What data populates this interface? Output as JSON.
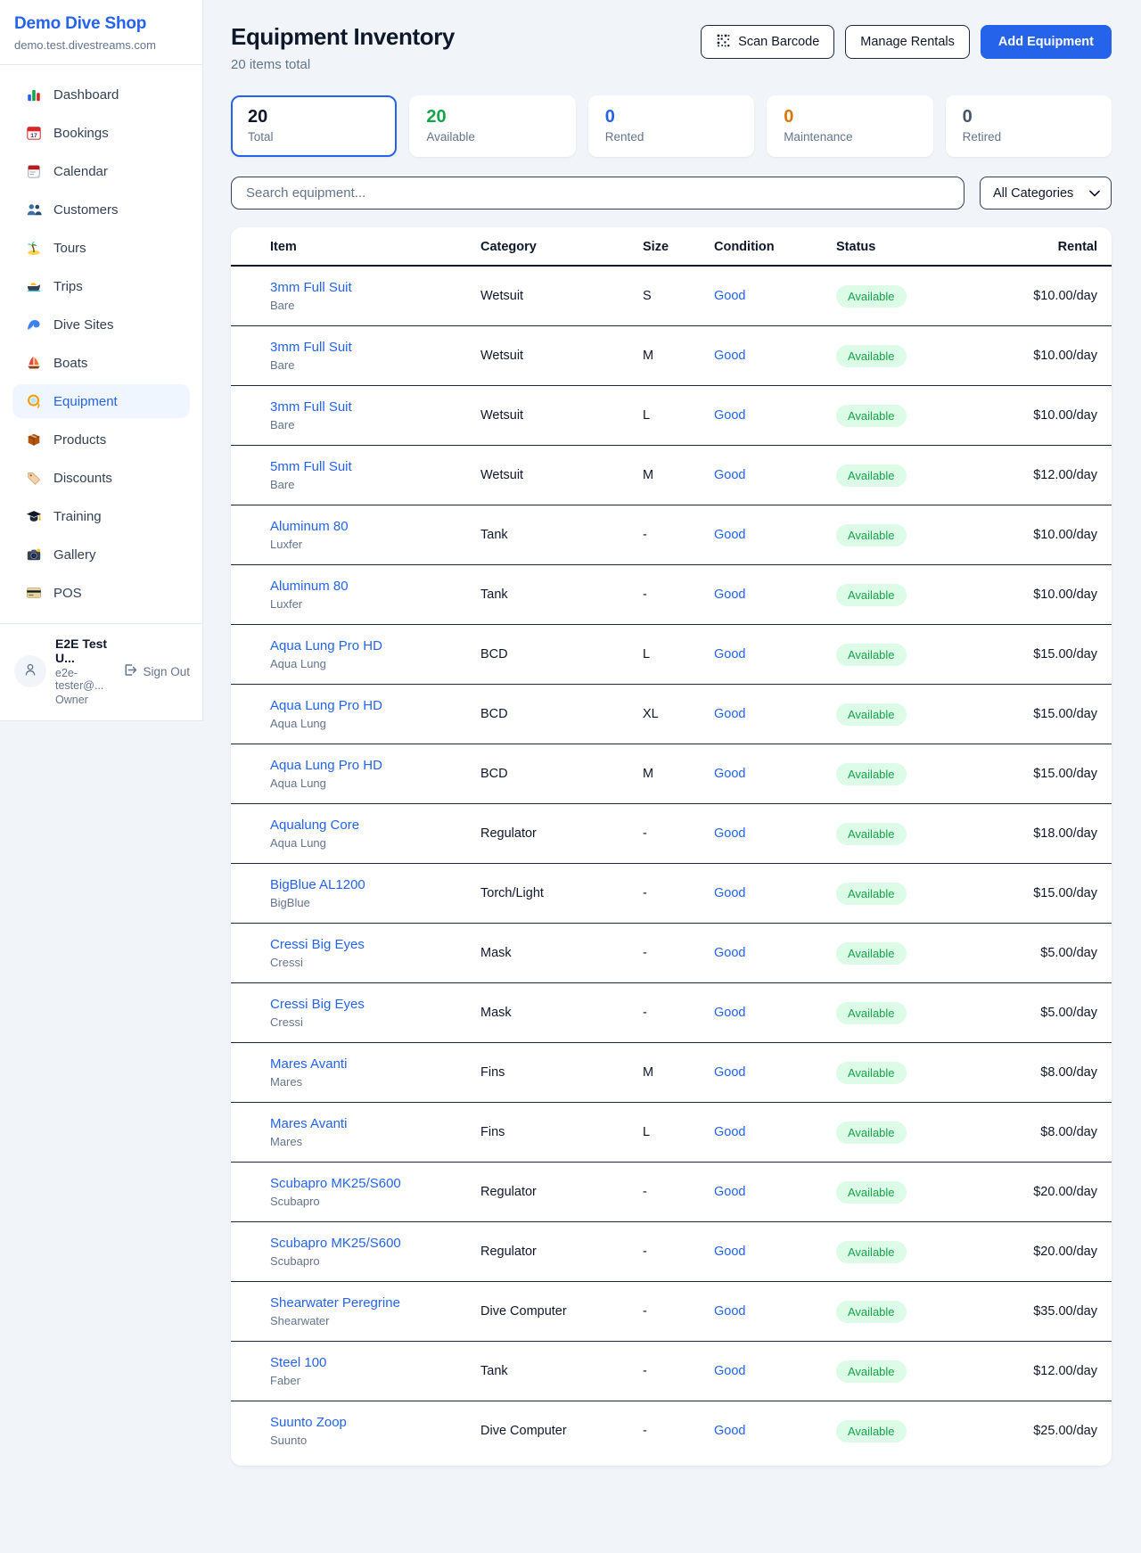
{
  "colors": {
    "accent": "#2563eb",
    "link": "#2563eb",
    "pill_bg": "#dcfce7",
    "pill_text": "#16a34a"
  },
  "sidebar": {
    "brand": "Demo Dive Shop",
    "domain": "demo.test.divestreams.com",
    "items": [
      {
        "label": "Dashboard",
        "icon": "bar-chart"
      },
      {
        "label": "Bookings",
        "icon": "calendar-date"
      },
      {
        "label": "Calendar",
        "icon": "calendar-pad"
      },
      {
        "label": "Customers",
        "icon": "people"
      },
      {
        "label": "Tours",
        "icon": "palm-island"
      },
      {
        "label": "Trips",
        "icon": "motorboat"
      },
      {
        "label": "Dive Sites",
        "icon": "wave"
      },
      {
        "label": "Boats",
        "icon": "sailboat"
      },
      {
        "label": "Equipment",
        "icon": "dive-mask",
        "active": true
      },
      {
        "label": "Products",
        "icon": "package"
      },
      {
        "label": "Discounts",
        "icon": "tag"
      },
      {
        "label": "Training",
        "icon": "grad-cap"
      },
      {
        "label": "Gallery",
        "icon": "camera"
      },
      {
        "label": "POS",
        "icon": "credit-card"
      }
    ],
    "user": {
      "name": "E2E Test U...",
      "email": "e2e-tester@...",
      "role": "Owner",
      "signout_label": "Sign Out"
    }
  },
  "header": {
    "title": "Equipment Inventory",
    "subtitle": "20 items total",
    "scan_label": "Scan Barcode",
    "manage_label": "Manage Rentals",
    "add_label": "Add Equipment"
  },
  "stats": [
    {
      "value": "20",
      "label": "Total",
      "color": "#0f172a",
      "selected": true
    },
    {
      "value": "20",
      "label": "Available",
      "color": "#16a34a",
      "selected": false
    },
    {
      "value": "0",
      "label": "Rented",
      "color": "#2563eb",
      "selected": false
    },
    {
      "value": "0",
      "label": "Maintenance",
      "color": "#d97706",
      "selected": false
    },
    {
      "value": "0",
      "label": "Retired",
      "color": "#475569",
      "selected": false
    }
  ],
  "filters": {
    "search_placeholder": "Search equipment...",
    "category": "All Categories"
  },
  "table": {
    "columns": [
      "Item",
      "Category",
      "Size",
      "Condition",
      "Status",
      "Rental"
    ],
    "rows": [
      {
        "name": "3mm Full Suit",
        "brand": "Bare",
        "category": "Wetsuit",
        "size": "S",
        "condition": "Good",
        "status": "Available",
        "rental": "$10.00/day"
      },
      {
        "name": "3mm Full Suit",
        "brand": "Bare",
        "category": "Wetsuit",
        "size": "M",
        "condition": "Good",
        "status": "Available",
        "rental": "$10.00/day"
      },
      {
        "name": "3mm Full Suit",
        "brand": "Bare",
        "category": "Wetsuit",
        "size": "L",
        "condition": "Good",
        "status": "Available",
        "rental": "$10.00/day"
      },
      {
        "name": "5mm Full Suit",
        "brand": "Bare",
        "category": "Wetsuit",
        "size": "M",
        "condition": "Good",
        "status": "Available",
        "rental": "$12.00/day"
      },
      {
        "name": "Aluminum 80",
        "brand": "Luxfer",
        "category": "Tank",
        "size": "-",
        "condition": "Good",
        "status": "Available",
        "rental": "$10.00/day"
      },
      {
        "name": "Aluminum 80",
        "brand": "Luxfer",
        "category": "Tank",
        "size": "-",
        "condition": "Good",
        "status": "Available",
        "rental": "$10.00/day"
      },
      {
        "name": "Aqua Lung Pro HD",
        "brand": "Aqua Lung",
        "category": "BCD",
        "size": "L",
        "condition": "Good",
        "status": "Available",
        "rental": "$15.00/day"
      },
      {
        "name": "Aqua Lung Pro HD",
        "brand": "Aqua Lung",
        "category": "BCD",
        "size": "XL",
        "condition": "Good",
        "status": "Available",
        "rental": "$15.00/day"
      },
      {
        "name": "Aqua Lung Pro HD",
        "brand": "Aqua Lung",
        "category": "BCD",
        "size": "M",
        "condition": "Good",
        "status": "Available",
        "rental": "$15.00/day"
      },
      {
        "name": "Aqualung Core",
        "brand": "Aqua Lung",
        "category": "Regulator",
        "size": "-",
        "condition": "Good",
        "status": "Available",
        "rental": "$18.00/day"
      },
      {
        "name": "BigBlue AL1200",
        "brand": "BigBlue",
        "category": "Torch/Light",
        "size": "-",
        "condition": "Good",
        "status": "Available",
        "rental": "$15.00/day"
      },
      {
        "name": "Cressi Big Eyes",
        "brand": "Cressi",
        "category": "Mask",
        "size": "-",
        "condition": "Good",
        "status": "Available",
        "rental": "$5.00/day"
      },
      {
        "name": "Cressi Big Eyes",
        "brand": "Cressi",
        "category": "Mask",
        "size": "-",
        "condition": "Good",
        "status": "Available",
        "rental": "$5.00/day"
      },
      {
        "name": "Mares Avanti",
        "brand": "Mares",
        "category": "Fins",
        "size": "M",
        "condition": "Good",
        "status": "Available",
        "rental": "$8.00/day"
      },
      {
        "name": "Mares Avanti",
        "brand": "Mares",
        "category": "Fins",
        "size": "L",
        "condition": "Good",
        "status": "Available",
        "rental": "$8.00/day"
      },
      {
        "name": "Scubapro MK25/S600",
        "brand": "Scubapro",
        "category": "Regulator",
        "size": "-",
        "condition": "Good",
        "status": "Available",
        "rental": "$20.00/day"
      },
      {
        "name": "Scubapro MK25/S600",
        "brand": "Scubapro",
        "category": "Regulator",
        "size": "-",
        "condition": "Good",
        "status": "Available",
        "rental": "$20.00/day"
      },
      {
        "name": "Shearwater Peregrine",
        "brand": "Shearwater",
        "category": "Dive Computer",
        "size": "-",
        "condition": "Good",
        "status": "Available",
        "rental": "$35.00/day"
      },
      {
        "name": "Steel 100",
        "brand": "Faber",
        "category": "Tank",
        "size": "-",
        "condition": "Good",
        "status": "Available",
        "rental": "$12.00/day"
      },
      {
        "name": "Suunto Zoop",
        "brand": "Suunto",
        "category": "Dive Computer",
        "size": "-",
        "condition": "Good",
        "status": "Available",
        "rental": "$25.00/day"
      }
    ]
  }
}
